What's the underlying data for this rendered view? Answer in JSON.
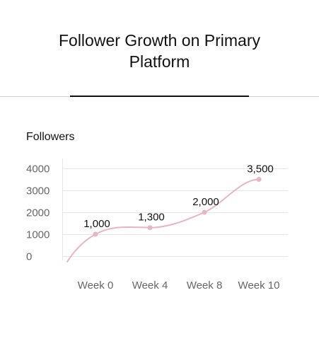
{
  "page": {
    "title_lines": [
      "Follower Growth on Primary",
      "Platform"
    ]
  },
  "colors": {
    "series": "#e8b4c6",
    "grid": "#e6e6e6",
    "tick_text": "#666666",
    "label_text": "#111111"
  },
  "chart_data": {
    "type": "line",
    "title": "Follower Growth on Primary Platform",
    "ylabel": "Followers",
    "xlabel": "",
    "categories": [
      "Week 0",
      "Week 4",
      "Week 8",
      "Week 10"
    ],
    "series": [
      {
        "values": [
          1000,
          1300,
          2000,
          3500
        ],
        "data_labels": [
          "1,000",
          "1,300",
          "2,000",
          "3,500"
        ]
      }
    ],
    "yticks": [
      0,
      1000,
      2000,
      3000,
      4000
    ],
    "ylim": [
      0,
      4000
    ],
    "grid": true,
    "smooth": true,
    "legend": "none"
  }
}
